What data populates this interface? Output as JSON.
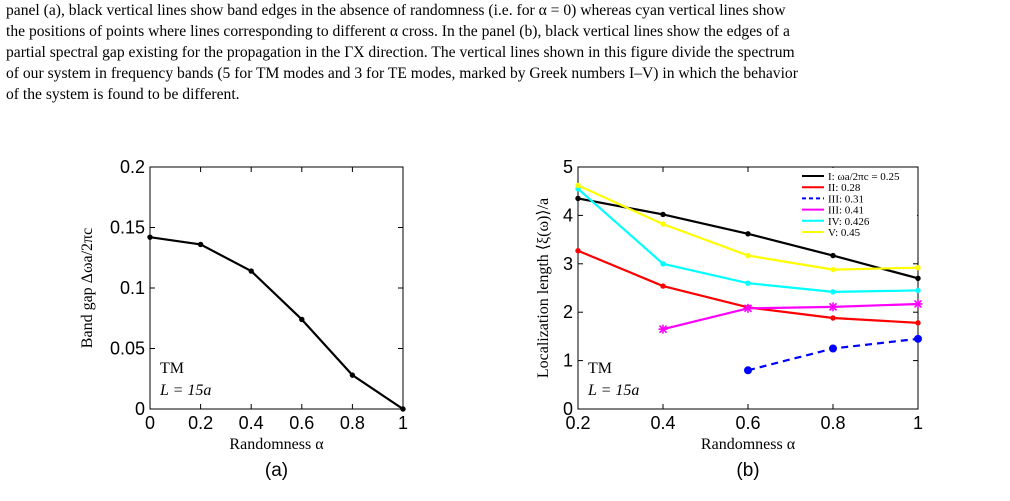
{
  "caption": {
    "lines": [
      "panel (a), black vertical lines show band edges in the absence of randomness (i.e. for α = 0) whereas cyan vertical lines show",
      "the positions of points where lines corresponding to different α cross. In the panel (b), black vertical lines show the edges of a",
      "partial spectral gap existing for the propagation in the ΓX direction. The vertical lines shown in this figure divide the spectrum",
      "of our system in frequency bands (5 for TM modes and 3 for TE modes, marked by Greek numbers I–V) in which the behavior",
      "of the system is found to be different."
    ]
  },
  "chart_data": [
    {
      "type": "line",
      "panel_label": "(a)",
      "xlabel": "Randomness α",
      "ylabel": "Band gap Δωa/2πc",
      "xlim": [
        0,
        1
      ],
      "ylim": [
        0,
        0.2
      ],
      "xticks": [
        "0",
        "0.2",
        "0.4",
        "0.6",
        "0.8",
        "1"
      ],
      "yticks": [
        "0",
        "0.05",
        "0.1",
        "0.15",
        "0.2"
      ],
      "annotation": [
        "TM",
        "L = 15a"
      ],
      "grid": false,
      "series": [
        {
          "color": "#000000",
          "marker": "dot",
          "x": [
            0,
            0.2,
            0.4,
            0.6,
            0.8,
            1
          ],
          "values": [
            0.142,
            0.136,
            0.114,
            0.074,
            0.028,
            0.0
          ]
        }
      ]
    },
    {
      "type": "line",
      "panel_label": "(b)",
      "xlabel": "Randomness α",
      "ylabel": "Localization length ⟨ξ(ω)⟩/a",
      "xlim": [
        0.2,
        1
      ],
      "ylim": [
        0,
        5
      ],
      "xticks": [
        "0.2",
        "0.4",
        "0.6",
        "0.8",
        "1"
      ],
      "yticks": [
        "0",
        "1",
        "2",
        "3",
        "4",
        "5"
      ],
      "annotation": [
        "TM",
        "L = 15a"
      ],
      "legend_position": "top-right",
      "grid": false,
      "series": [
        {
          "name": "I: ωa/2πc = 0.25",
          "color": "#000000",
          "dash": "solid",
          "marker": "dot",
          "x": [
            0.2,
            0.4,
            0.6,
            0.8,
            1
          ],
          "values": [
            4.35,
            4.02,
            3.62,
            3.17,
            2.7
          ]
        },
        {
          "name": "II: 0.28",
          "color": "#ff0000",
          "dash": "solid",
          "marker": "dot",
          "x": [
            0.2,
            0.4,
            0.6,
            0.8,
            1
          ],
          "values": [
            3.27,
            2.54,
            2.1,
            1.88,
            1.78
          ]
        },
        {
          "name": "III: 0.31",
          "color": "#0000ff",
          "dash": "dashed",
          "marker": "dot",
          "x": [
            0.6,
            0.8,
            1
          ],
          "values": [
            0.8,
            1.25,
            1.45
          ]
        },
        {
          "name": "III: 0.41",
          "color": "#ff00ff",
          "dash": "solid",
          "marker": "star",
          "x": [
            0.4,
            0.6,
            0.8,
            1
          ],
          "values": [
            1.65,
            2.08,
            2.11,
            2.17
          ]
        },
        {
          "name": "IV: 0.426",
          "color": "#00ffff",
          "dash": "solid",
          "marker": "dot",
          "x": [
            0.2,
            0.4,
            0.6,
            0.8,
            1
          ],
          "values": [
            4.55,
            3.0,
            2.6,
            2.42,
            2.45
          ]
        },
        {
          "name": "V: 0.45",
          "color": "#ffff00",
          "dash": "solid",
          "marker": "dot",
          "x": [
            0.2,
            0.4,
            0.6,
            0.8,
            1
          ],
          "values": [
            4.62,
            3.82,
            3.17,
            2.88,
            2.92
          ]
        }
      ]
    }
  ]
}
